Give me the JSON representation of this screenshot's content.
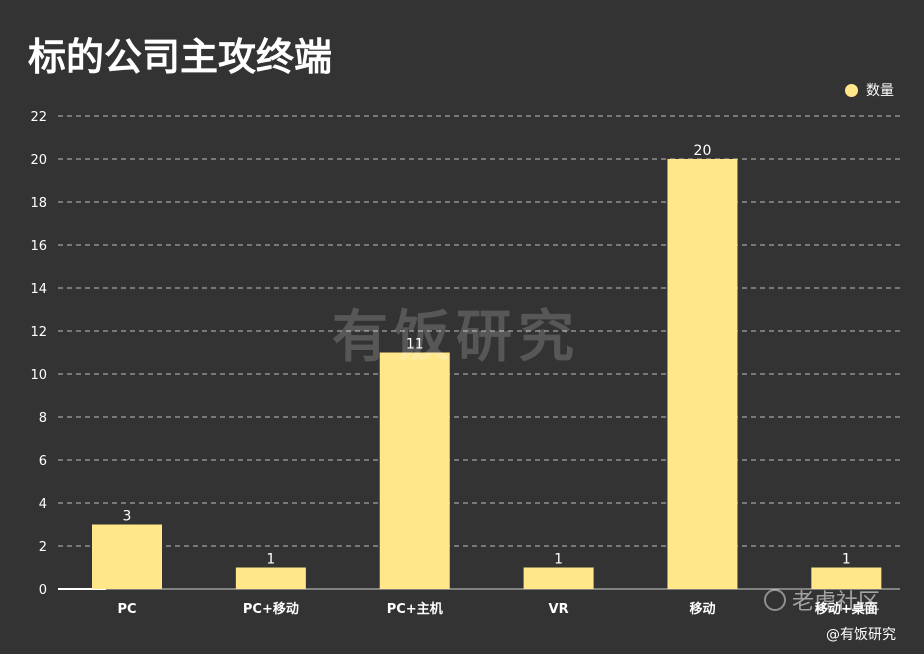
{
  "title": "标的公司主攻终端",
  "legend": {
    "label": "数量"
  },
  "watermark": "有饭研究",
  "corner_watermark": "老虎社区",
  "credit": "@有饭研究",
  "colors": {
    "background": "#333333",
    "bar": "#FFE78A",
    "grid": "#bdbdbd",
    "text": "#ffffff"
  },
  "chart_data": {
    "type": "bar",
    "title": "标的公司主攻终端",
    "categories": [
      "PC",
      "PC+移动",
      "PC+主机",
      "VR",
      "移动",
      "移动+桌面"
    ],
    "series": [
      {
        "name": "数量",
        "values": [
          3,
          1,
          11,
          1,
          20,
          1
        ]
      }
    ],
    "xlabel": "",
    "ylabel": "",
    "ylim": [
      0,
      22
    ],
    "yticks": [
      0,
      2,
      4,
      6,
      8,
      10,
      12,
      14,
      16,
      18,
      20,
      22
    ],
    "grid": true,
    "legend_position": "top-right",
    "data_labels": true
  }
}
